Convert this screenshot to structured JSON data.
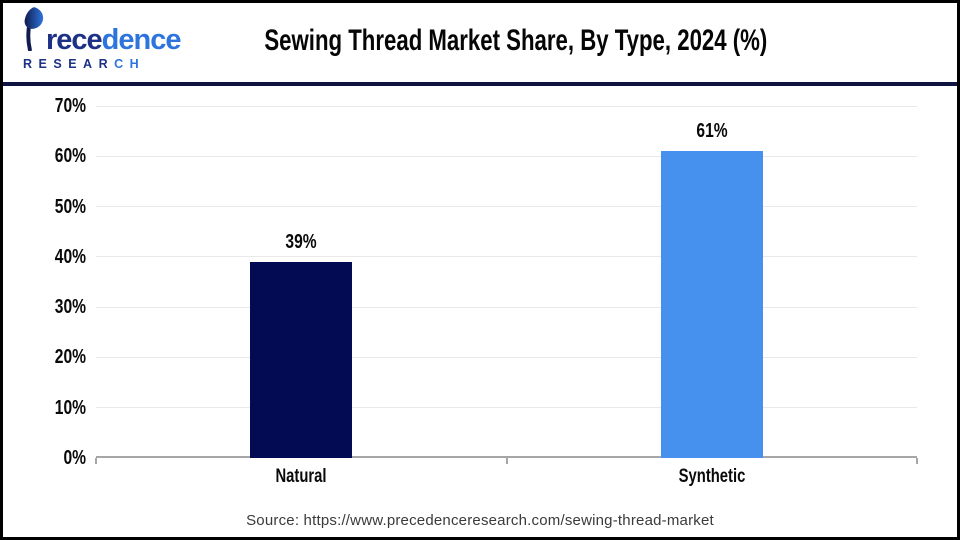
{
  "header": {
    "title": "Sewing Thread Market Share, By Type, 2024 (%)"
  },
  "logo": {
    "brand_full": "Precedence",
    "brand_part1": "rece",
    "brand_part2": "dence",
    "subtitle_full": "RESEARCH",
    "subtitle_main": "RESEAR",
    "subtitle_accent": "CH"
  },
  "chart_data": {
    "type": "bar",
    "title": "Sewing Thread Market Share, By Type, 2024 (%)",
    "categories": [
      "Natural",
      "Synthetic"
    ],
    "values": [
      39,
      61
    ],
    "data_labels": [
      "39%",
      "61%"
    ],
    "bar_colors": [
      "#030c52",
      "#4691ee"
    ],
    "ylim": [
      0,
      70
    ],
    "yticks": [
      0,
      10,
      20,
      30,
      40,
      50,
      60,
      70
    ],
    "ytick_labels": [
      "0%",
      "10%",
      "20%",
      "30%",
      "40%",
      "50%",
      "60%",
      "70%"
    ],
    "xlabel": "",
    "ylabel": "",
    "grid": "horizontal",
    "legend": "none"
  },
  "footer": {
    "source": "Source: https://www.precedenceresearch.com/sewing-thread-market"
  },
  "colors": {
    "navy_bar": "#030c52",
    "blue_bar": "#4691ee",
    "separator": "#101441",
    "gridline": "#e9e9e9",
    "axis_line": "#a6a6a6",
    "logo_navy": "#1d3186",
    "logo_blue": "#2e74dd"
  }
}
